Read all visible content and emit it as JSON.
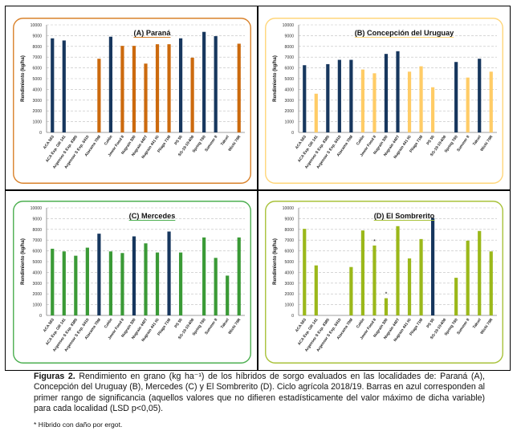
{
  "caption": {
    "label": "Figuras 2.",
    "text": "Rendimiento en grano (kg ha⁻¹) de los híbridos de sorgo evaluados en las localidades de: Paraná (A), Concepción del Uruguay (B), Mercedes (C) y El Sombrerito (D). Ciclo agrícola 2018/19. Barras en azul corresponden al primer rango de significancia (aquellos valores que no difieren estadísticamente del valor máximo de dicha variable) para cada localidad (LSD p<0,05)."
  },
  "footnote": "* Híbrido con daño por ergot.",
  "colors": {
    "significant": "#17375E",
    "parana": "#CC6A0E",
    "concepcion": "#FFCC66",
    "mercedes": "#3A9A36",
    "sombrerito": "#9BB81A"
  },
  "chart_data": [
    {
      "id": "A",
      "type": "bar",
      "title": "(A) Paraná",
      "xlabel": "",
      "ylabel": "Rendimiento (kg/ha)",
      "ylim": [
        0,
        10000
      ],
      "yticks": [
        0,
        1000,
        2000,
        3000,
        4000,
        5000,
        6000,
        7000,
        8000,
        9000,
        10000
      ],
      "grid": true,
      "frame_color": "#D9822B",
      "base_color_key": "parana",
      "categories": [
        "ACA 563",
        "ACA Exp. GR 141",
        "Argensor S Exp. 8385",
        "Argensor S Exp. 8410",
        "Atacama 70M",
        "Colón",
        "Jowar Food II",
        "Nugrain 300",
        "Nugrain 440T",
        "Nugrain 441 IG",
        "Pilaga 71M",
        "PS 55",
        "SG-19-10-608",
        "Spring T60",
        "Summer II",
        "Takurí",
        "Wichi 70R"
      ],
      "values": [
        8750,
        8550,
        null,
        null,
        6850,
        8900,
        8050,
        8050,
        6400,
        8200,
        8200,
        8750,
        6950,
        9350,
        8950,
        null,
        8250
      ],
      "significant": [
        true,
        true,
        false,
        false,
        false,
        true,
        false,
        false,
        false,
        false,
        false,
        true,
        false,
        true,
        true,
        false,
        false
      ],
      "ergot": [
        false,
        false,
        false,
        false,
        false,
        false,
        false,
        false,
        false,
        false,
        false,
        false,
        false,
        false,
        false,
        false,
        false
      ]
    },
    {
      "id": "B",
      "type": "bar",
      "title": "(B) Concepción del Uruguay",
      "xlabel": "",
      "ylabel": "Rendimiento (kg/ha)",
      "ylim": [
        0,
        10000
      ],
      "yticks": [
        0,
        1000,
        2000,
        3000,
        4000,
        5000,
        6000,
        7000,
        8000,
        9000,
        10000
      ],
      "grid": true,
      "frame_color": "#FFD67A",
      "base_color_key": "concepcion",
      "categories": [
        "ACA 563",
        "ACA Exp. GR 141",
        "Argensor S Exp. 8385",
        "Argensor S Exp. 8410",
        "Atacama 70M",
        "Colón",
        "Jowar Food II",
        "Nugrain 300",
        "Nugrain 440T",
        "Nugrain 441 IG",
        "Pilaga 71M",
        "PS 55",
        "SG-19-10-608",
        "Spring T60",
        "Summer II",
        "Takurí",
        "Wichi 70R"
      ],
      "values": [
        6250,
        3600,
        6350,
        6750,
        6750,
        5850,
        5500,
        7300,
        7550,
        5650,
        6150,
        4200,
        null,
        6550,
        5100,
        6850,
        5650
      ],
      "significant": [
        true,
        false,
        true,
        true,
        true,
        false,
        false,
        true,
        true,
        false,
        false,
        false,
        false,
        true,
        false,
        true,
        false
      ],
      "ergot": [
        false,
        false,
        false,
        false,
        false,
        false,
        false,
        false,
        false,
        false,
        false,
        false,
        false,
        false,
        false,
        false,
        false
      ]
    },
    {
      "id": "C",
      "type": "bar",
      "title": "(C) Mercedes",
      "xlabel": "",
      "ylabel": "Rendimiento (kg/ha)",
      "ylim": [
        0,
        10000
      ],
      "yticks": [
        0,
        1000,
        2000,
        3000,
        4000,
        5000,
        6000,
        7000,
        8000,
        9000,
        10000
      ],
      "grid": true,
      "frame_color": "#4CAF50",
      "base_color_key": "mercedes",
      "categories": [
        "ACA 563",
        "ACA Exp. GR 141",
        "Argensor S Exp. 8385",
        "Argensor S Exp. 8410",
        "Atacama 70M",
        "Colón",
        "Jowar Food II",
        "Nugrain 300",
        "Nugrain 440T",
        "Nugrain 441 IG",
        "Pilaga 71M",
        "PS 55",
        "SG-19-10-608",
        "Spring T60",
        "Summer II",
        "Takurí",
        "Wichi 70R"
      ],
      "values": [
        6200,
        5950,
        5550,
        6300,
        7600,
        5950,
        5800,
        7350,
        6700,
        5850,
        7800,
        5850,
        null,
        7250,
        5350,
        3700,
        7250
      ],
      "significant": [
        false,
        false,
        false,
        false,
        true,
        false,
        false,
        true,
        false,
        false,
        true,
        false,
        false,
        false,
        false,
        false,
        false
      ],
      "ergot": [
        false,
        false,
        false,
        false,
        false,
        false,
        false,
        false,
        false,
        false,
        false,
        false,
        false,
        false,
        false,
        false,
        false
      ]
    },
    {
      "id": "D",
      "type": "bar",
      "title": "(D) El Sombrerito",
      "xlabel": "",
      "ylabel": "Rendimiento (kg/ha)",
      "ylim": [
        0,
        10000
      ],
      "yticks": [
        0,
        1000,
        2000,
        3000,
        4000,
        5000,
        6000,
        7000,
        8000,
        9000,
        10000
      ],
      "grid": true,
      "frame_color": "#A8C23A",
      "base_color_key": "sombrerito",
      "categories": [
        "ACA 563",
        "ACA Exp. GR 141",
        "Argensor S Exp. 8385",
        "Argensor S Exp. 8410",
        "Atacama 70M",
        "Colón",
        "Jowar Food II",
        "Nugrain 300",
        "Nugrain 440T",
        "Nugrain 441 IG",
        "Pilaga 71M",
        "PS 55",
        "SG-19-10-608",
        "Spring T60",
        "Summer II",
        "Takurí",
        "Wichi 70R"
      ],
      "values": [
        8050,
        4650,
        null,
        null,
        4500,
        7900,
        6500,
        1600,
        8300,
        5300,
        7100,
        9050,
        null,
        3500,
        6950,
        7850,
        5950
      ],
      "significant": [
        false,
        false,
        false,
        false,
        false,
        false,
        false,
        false,
        false,
        false,
        false,
        true,
        false,
        false,
        false,
        false,
        false
      ],
      "ergot": [
        false,
        false,
        false,
        false,
        false,
        false,
        true,
        true,
        false,
        false,
        false,
        false,
        false,
        false,
        false,
        false,
        false
      ],
      "annotation": "*"
    }
  ]
}
